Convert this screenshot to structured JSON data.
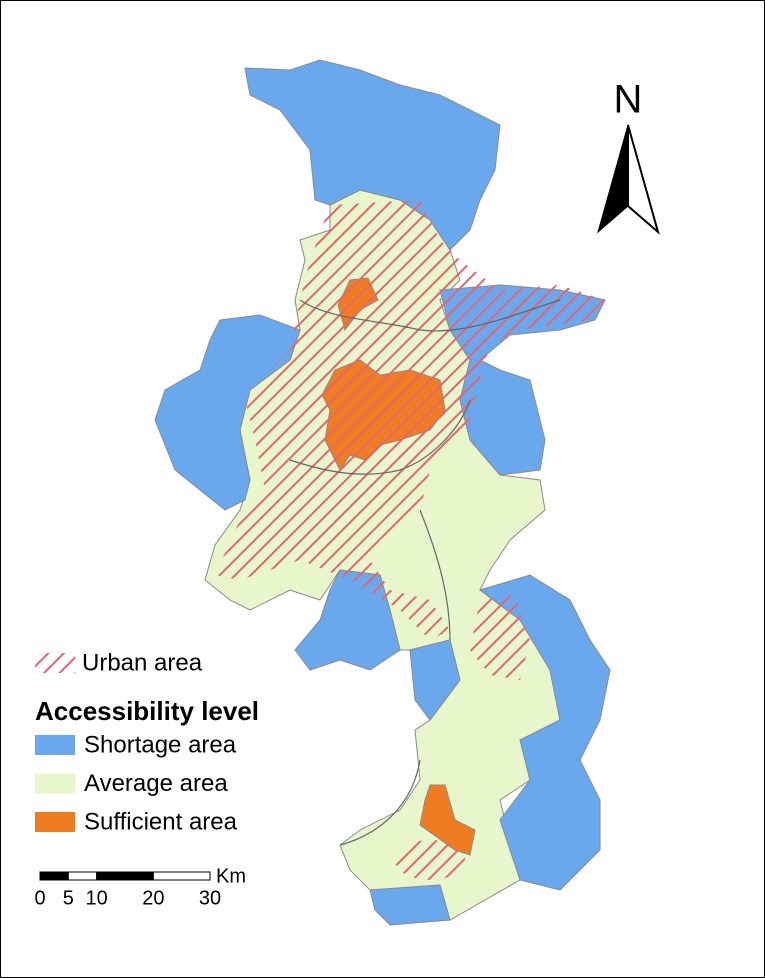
{
  "north_arrow": {
    "label": "N"
  },
  "legend": {
    "urban": {
      "label": "Urban area",
      "color": "#e8646e"
    },
    "title": "Accessibility level",
    "items": [
      {
        "label": "Shortage area",
        "color": "#6aa8ee"
      },
      {
        "label": "Average area",
        "color": "#e8f6cc"
      },
      {
        "label": "Sufficient area",
        "color": "#f07c22"
      }
    ]
  },
  "scale_bar": {
    "unit": "Km",
    "ticks": [
      0,
      5,
      10,
      20,
      30
    ]
  }
}
